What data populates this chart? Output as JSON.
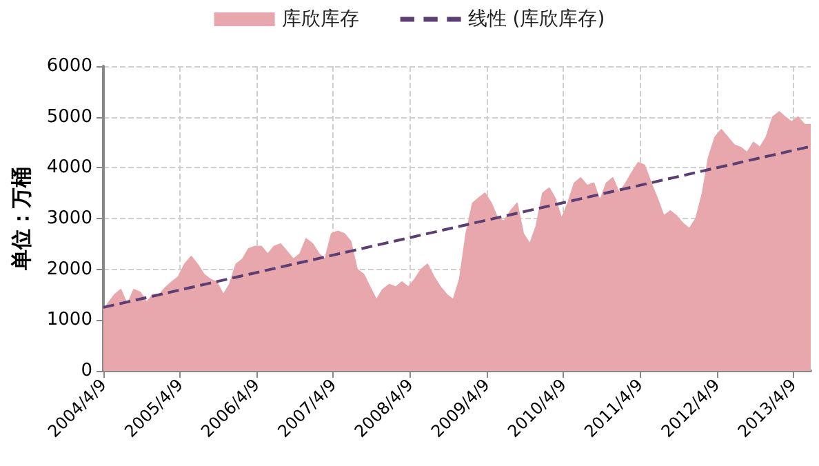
{
  "chart_data": {
    "type": "area",
    "ylabel": "单位：万桶",
    "x": [
      "2004-04-09",
      "2004-06-01",
      "2004-07-01",
      "2004-08-01",
      "2004-09-01",
      "2004-10-01",
      "2004-11-01",
      "2004-12-01",
      "2005-01-01",
      "2005-02-01",
      "2005-03-01",
      "2005-04-01",
      "2005-05-01",
      "2005-06-01",
      "2005-07-01",
      "2005-08-01",
      "2005-09-01",
      "2005-10-01",
      "2005-11-01",
      "2005-12-01",
      "2006-01-01",
      "2006-02-01",
      "2006-03-01",
      "2006-04-01",
      "2006-05-01",
      "2006-06-01",
      "2006-07-01",
      "2006-08-01",
      "2006-09-01",
      "2006-10-01",
      "2006-11-01",
      "2006-12-01",
      "2007-01-01",
      "2007-02-01",
      "2007-03-01",
      "2007-04-01",
      "2007-05-01",
      "2007-06-01",
      "2007-07-01",
      "2007-08-01",
      "2007-09-01",
      "2007-10-01",
      "2007-11-01",
      "2007-12-01",
      "2008-01-01",
      "2008-02-01",
      "2008-03-01",
      "2008-04-01",
      "2008-05-01",
      "2008-06-01",
      "2008-07-01",
      "2008-08-01",
      "2008-09-01",
      "2008-10-01",
      "2008-11-01",
      "2008-12-01",
      "2009-01-01",
      "2009-02-01",
      "2009-03-01",
      "2009-04-01",
      "2009-05-01",
      "2009-06-01",
      "2009-07-01",
      "2009-08-01",
      "2009-09-01",
      "2009-10-01",
      "2009-11-01",
      "2009-12-01",
      "2010-01-01",
      "2010-02-01",
      "2010-03-01",
      "2010-04-01",
      "2010-05-01",
      "2010-06-01",
      "2010-07-01",
      "2010-08-01",
      "2010-09-01",
      "2010-10-01",
      "2010-11-01",
      "2010-12-01",
      "2011-01-01",
      "2011-02-01",
      "2011-03-01",
      "2011-04-01",
      "2011-05-01",
      "2011-06-01",
      "2011-07-01",
      "2011-08-01",
      "2011-09-01",
      "2011-10-01",
      "2011-11-01",
      "2011-12-01",
      "2012-01-01",
      "2012-02-01",
      "2012-03-01",
      "2012-04-01",
      "2012-05-01",
      "2012-06-01",
      "2012-07-01",
      "2012-08-01",
      "2012-09-01",
      "2012-10-01",
      "2012-11-01",
      "2012-12-01",
      "2013-01-01",
      "2013-02-01",
      "2013-03-01",
      "2013-04-01",
      "2013-05-01",
      "2013-06-01",
      "2013-07-01"
    ],
    "series": [
      {
        "name": "库欣库存",
        "color": "#e8a7ac",
        "values": [
          1200,
          1500,
          1600,
          1300,
          1600,
          1550,
          1350,
          1500,
          1500,
          1650,
          1750,
          1850,
          2100,
          2250,
          2100,
          1900,
          1800,
          1750,
          1500,
          1700,
          2100,
          2200,
          2400,
          2450,
          2450,
          2300,
          2450,
          2500,
          2350,
          2200,
          2300,
          2600,
          2500,
          2300,
          2200,
          2700,
          2750,
          2700,
          2550,
          2000,
          1900,
          1650,
          1400,
          1600,
          1700,
          1650,
          1750,
          1650,
          1800,
          2000,
          2100,
          1850,
          1650,
          1500,
          1400,
          1800,
          2700,
          3300,
          3400,
          3500,
          3300,
          3000,
          2950,
          3150,
          3300,
          2700,
          2500,
          2850,
          3500,
          3600,
          3400,
          3000,
          3300,
          3700,
          3800,
          3650,
          3700,
          3350,
          3700,
          3800,
          3500,
          3700,
          3900,
          4100,
          4050,
          3700,
          3400,
          3050,
          3150,
          3050,
          2900,
          2800,
          3000,
          3500,
          4200,
          4600,
          4750,
          4600,
          4450,
          4400,
          4300,
          4500,
          4400,
          4600,
          5000,
          5100,
          5000,
          4900,
          5000,
          4850,
          4850
        ]
      },
      {
        "name": "线性 (库欣库存)",
        "type": "line",
        "color": "#5b3f73",
        "line_style": "dashed",
        "x": [
          "2004-04-09",
          "2013-07-01"
        ],
        "values": [
          1250,
          4420
        ]
      }
    ],
    "xlim": [
      "2004-04-09",
      "2013-07-01"
    ],
    "xticks": [
      {
        "value": "2004-04-09",
        "label": "2004/4/9"
      },
      {
        "value": "2005-04-09",
        "label": "2005/4/9"
      },
      {
        "value": "2006-04-09",
        "label": "2006/4/9"
      },
      {
        "value": "2007-04-09",
        "label": "2007/4/9"
      },
      {
        "value": "2008-04-09",
        "label": "2008/4/9"
      },
      {
        "value": "2009-04-09",
        "label": "2009/4/9"
      },
      {
        "value": "2010-04-09",
        "label": "2010/4/9"
      },
      {
        "value": "2011-04-09",
        "label": "2011/4/9"
      },
      {
        "value": "2012-04-09",
        "label": "2012/4/9"
      },
      {
        "value": "2013-04-09",
        "label": "2013/4/9"
      }
    ],
    "ylim": [
      0,
      6000
    ],
    "yticks": [
      0,
      1000,
      2000,
      3000,
      4000,
      5000,
      6000
    ],
    "grid": true,
    "legend": "top",
    "marker": "none"
  }
}
